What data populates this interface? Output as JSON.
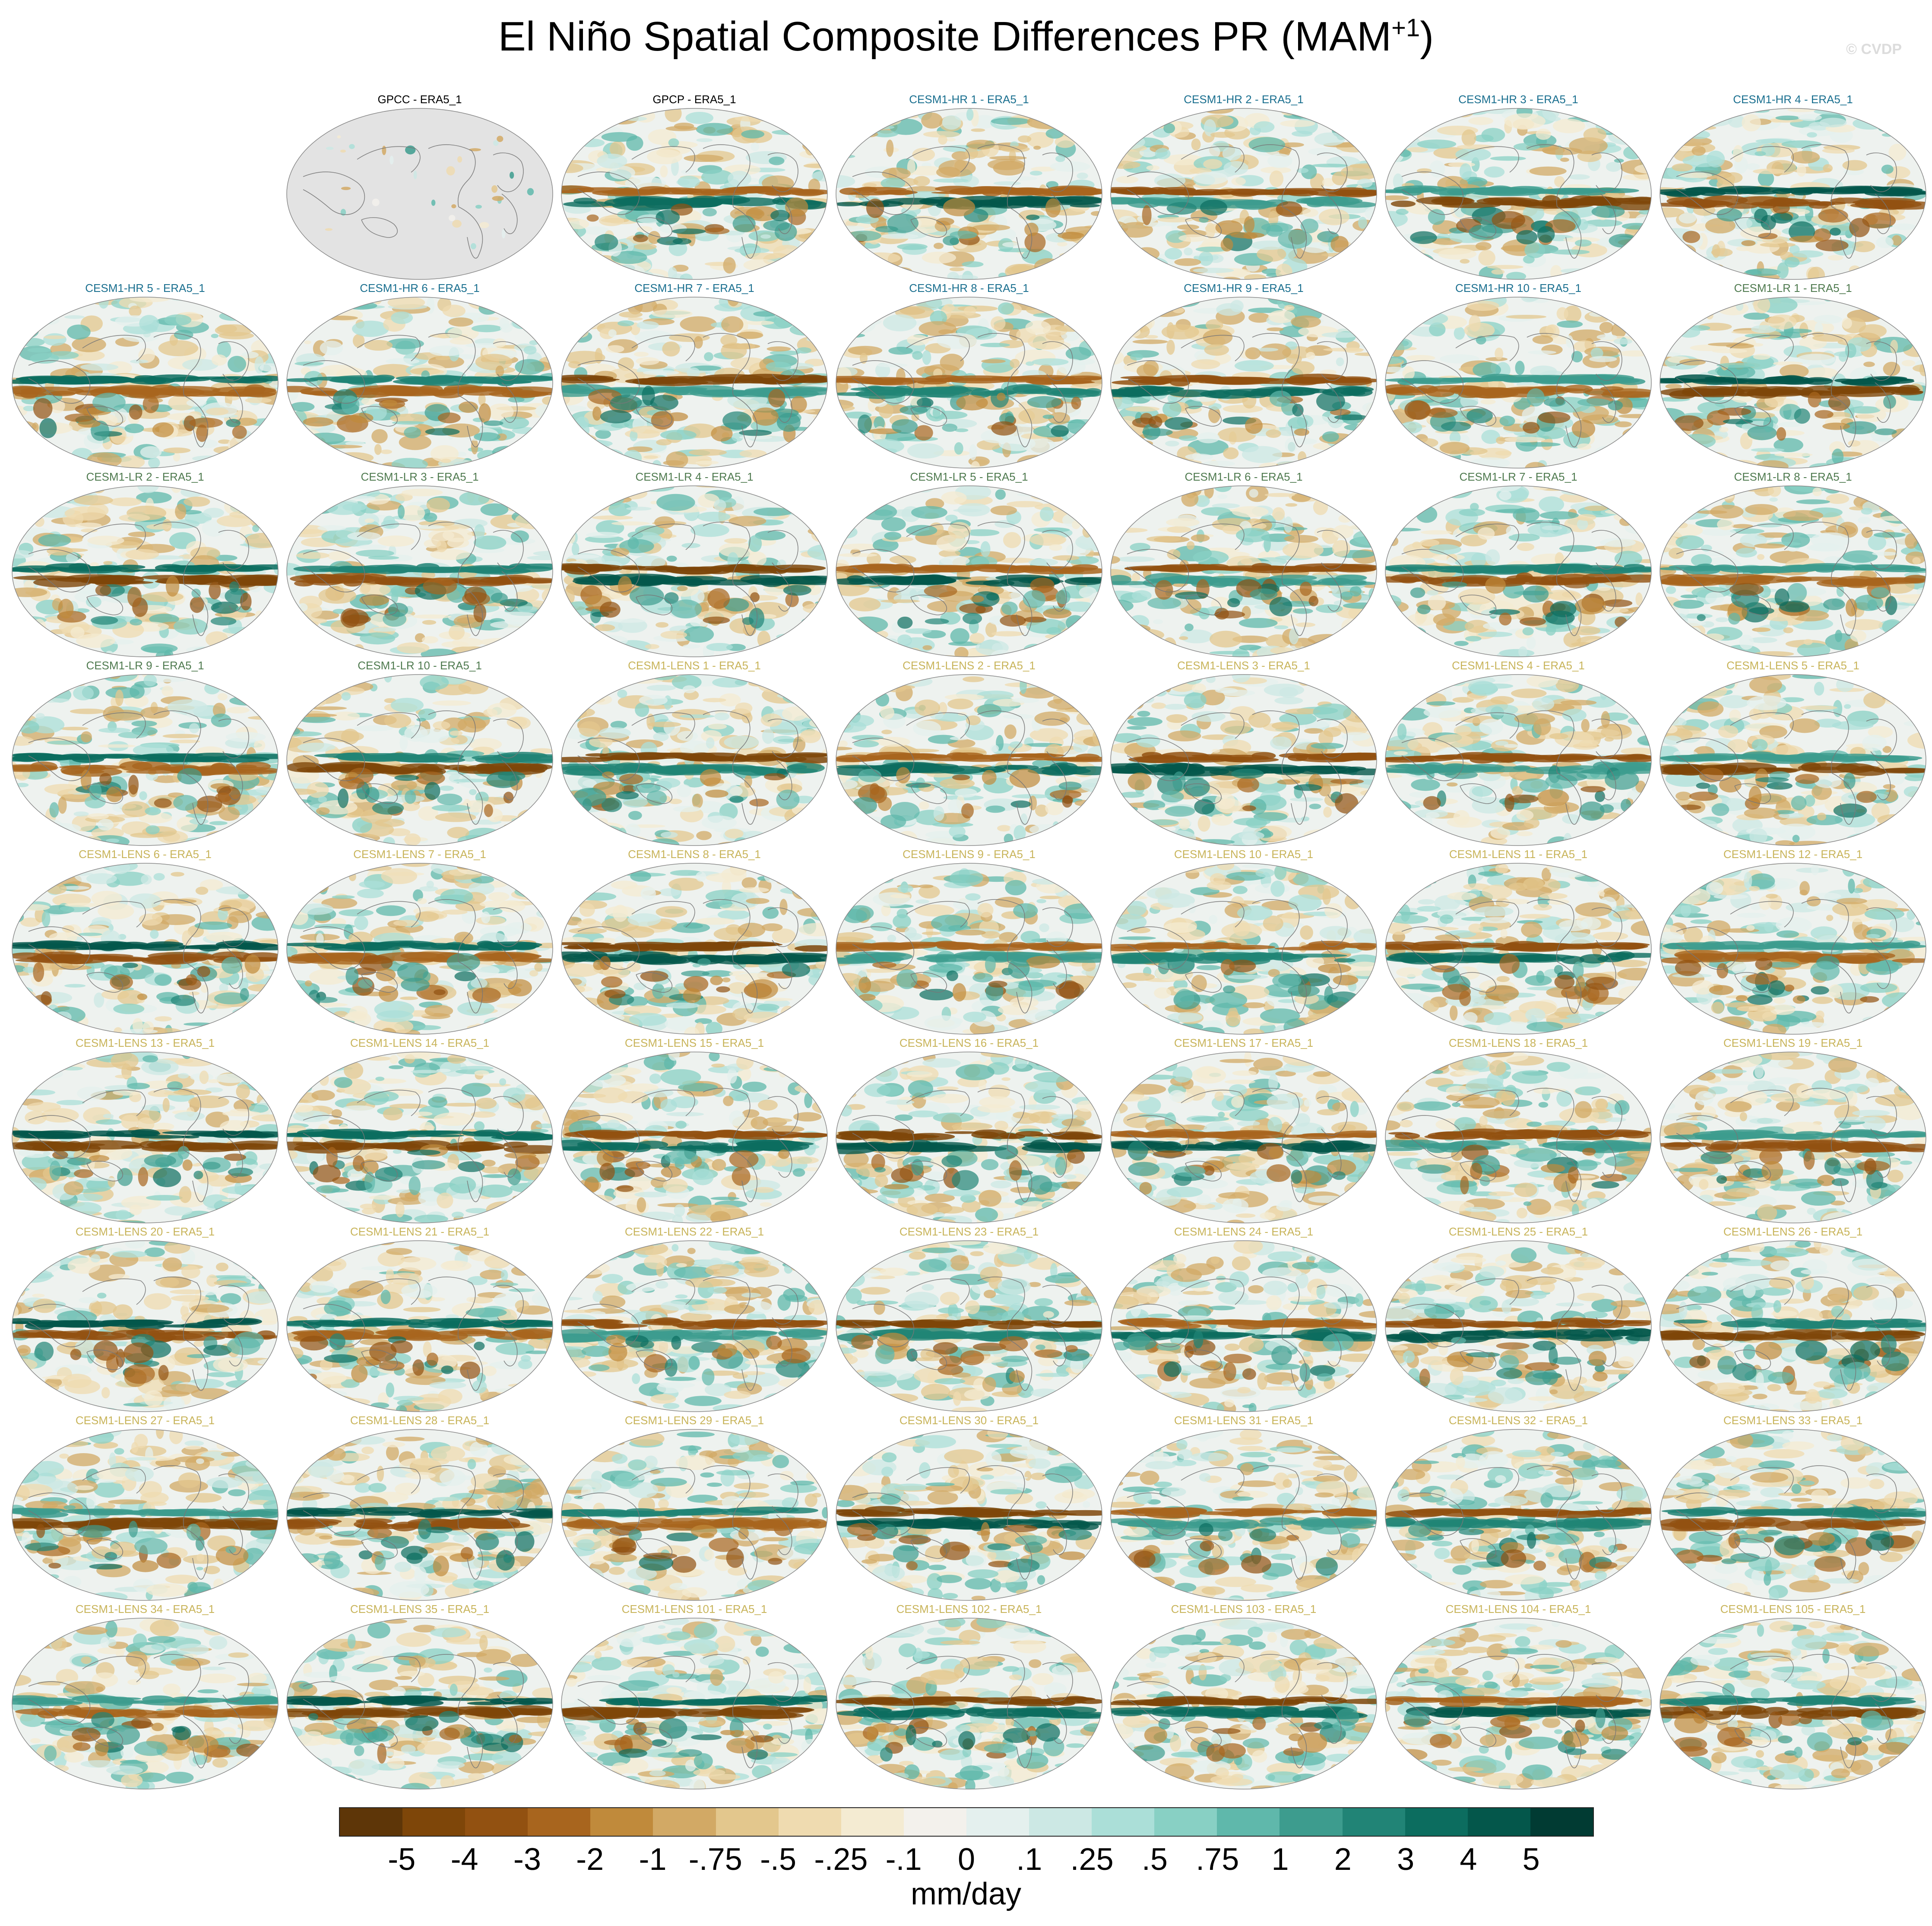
{
  "title": {
    "main": "El Niño Spatial Composite Differences PR (MAM",
    "sup": "+1",
    "close": ")"
  },
  "credit": "© CVDP",
  "panels": [
    {
      "label": "GPCC - ERA5_1",
      "group": "obs",
      "masked": true
    },
    {
      "label": "GPCP - ERA5_1",
      "group": "obs"
    },
    {
      "label": "CESM1-HR 1 - ERA5_1",
      "group": "hr"
    },
    {
      "label": "CESM1-HR 2 - ERA5_1",
      "group": "hr"
    },
    {
      "label": "CESM1-HR 3 - ERA5_1",
      "group": "hr"
    },
    {
      "label": "CESM1-HR 4 - ERA5_1",
      "group": "hr"
    },
    {
      "label": "CESM1-HR 5 - ERA5_1",
      "group": "hr"
    },
    {
      "label": "CESM1-HR 6 - ERA5_1",
      "group": "hr"
    },
    {
      "label": "CESM1-HR 7 - ERA5_1",
      "group": "hr"
    },
    {
      "label": "CESM1-HR 8 - ERA5_1",
      "group": "hr"
    },
    {
      "label": "CESM1-HR 9 - ERA5_1",
      "group": "hr"
    },
    {
      "label": "CESM1-HR 10 - ERA5_1",
      "group": "hr"
    },
    {
      "label": "CESM1-LR 1 - ERA5_1",
      "group": "lr"
    },
    {
      "label": "CESM1-LR 2 - ERA5_1",
      "group": "lr"
    },
    {
      "label": "CESM1-LR 3 - ERA5_1",
      "group": "lr"
    },
    {
      "label": "CESM1-LR 4 - ERA5_1",
      "group": "lr"
    },
    {
      "label": "CESM1-LR 5 - ERA5_1",
      "group": "lr"
    },
    {
      "label": "CESM1-LR 6 - ERA5_1",
      "group": "lr"
    },
    {
      "label": "CESM1-LR 7 - ERA5_1",
      "group": "lr"
    },
    {
      "label": "CESM1-LR 8 - ERA5_1",
      "group": "lr"
    },
    {
      "label": "CESM1-LR 9 - ERA5_1",
      "group": "lr"
    },
    {
      "label": "CESM1-LR 10 - ERA5_1",
      "group": "lr"
    },
    {
      "label": "CESM1-LENS 1 - ERA5_1",
      "group": "lens"
    },
    {
      "label": "CESM1-LENS 2 - ERA5_1",
      "group": "lens"
    },
    {
      "label": "CESM1-LENS 3 - ERA5_1",
      "group": "lens"
    },
    {
      "label": "CESM1-LENS 4 - ERA5_1",
      "group": "lens"
    },
    {
      "label": "CESM1-LENS 5 - ERA5_1",
      "group": "lens"
    },
    {
      "label": "CESM1-LENS 6 - ERA5_1",
      "group": "lens"
    },
    {
      "label": "CESM1-LENS 7 - ERA5_1",
      "group": "lens"
    },
    {
      "label": "CESM1-LENS 8 - ERA5_1",
      "group": "lens"
    },
    {
      "label": "CESM1-LENS 9 - ERA5_1",
      "group": "lens"
    },
    {
      "label": "CESM1-LENS 10 - ERA5_1",
      "group": "lens"
    },
    {
      "label": "CESM1-LENS 11 - ERA5_1",
      "group": "lens"
    },
    {
      "label": "CESM1-LENS 12 - ERA5_1",
      "group": "lens"
    },
    {
      "label": "CESM1-LENS 13 - ERA5_1",
      "group": "lens"
    },
    {
      "label": "CESM1-LENS 14 - ERA5_1",
      "group": "lens"
    },
    {
      "label": "CESM1-LENS 15 - ERA5_1",
      "group": "lens"
    },
    {
      "label": "CESM1-LENS 16 - ERA5_1",
      "group": "lens"
    },
    {
      "label": "CESM1-LENS 17 - ERA5_1",
      "group": "lens"
    },
    {
      "label": "CESM1-LENS 18 - ERA5_1",
      "group": "lens"
    },
    {
      "label": "CESM1-LENS 19 - ERA5_1",
      "group": "lens"
    },
    {
      "label": "CESM1-LENS 20 - ERA5_1",
      "group": "lens"
    },
    {
      "label": "CESM1-LENS 21 - ERA5_1",
      "group": "lens"
    },
    {
      "label": "CESM1-LENS 22 - ERA5_1",
      "group": "lens"
    },
    {
      "label": "CESM1-LENS 23 - ERA5_1",
      "group": "lens"
    },
    {
      "label": "CESM1-LENS 24 - ERA5_1",
      "group": "lens"
    },
    {
      "label": "CESM1-LENS 25 - ERA5_1",
      "group": "lens"
    },
    {
      "label": "CESM1-LENS 26 - ERA5_1",
      "group": "lens"
    },
    {
      "label": "CESM1-LENS 27 - ERA5_1",
      "group": "lens"
    },
    {
      "label": "CESM1-LENS 28 - ERA5_1",
      "group": "lens"
    },
    {
      "label": "CESM1-LENS 29 - ERA5_1",
      "group": "lens"
    },
    {
      "label": "CESM1-LENS 30 - ERA5_1",
      "group": "lens"
    },
    {
      "label": "CESM1-LENS 31 - ERA5_1",
      "group": "lens"
    },
    {
      "label": "CESM1-LENS 32 - ERA5_1",
      "group": "lens"
    },
    {
      "label": "CESM1-LENS 33 - ERA5_1",
      "group": "lens"
    },
    {
      "label": "CESM1-LENS 34 - ERA5_1",
      "group": "lens"
    },
    {
      "label": "CESM1-LENS 35 - ERA5_1",
      "group": "lens"
    },
    {
      "label": "CESM1-LENS 101 - ERA5_1",
      "group": "lens"
    },
    {
      "label": "CESM1-LENS 102 - ERA5_1",
      "group": "lens"
    },
    {
      "label": "CESM1-LENS 103 - ERA5_1",
      "group": "lens"
    },
    {
      "label": "CESM1-LENS 104 - ERA5_1",
      "group": "lens"
    },
    {
      "label": "CESM1-LENS 105 - ERA5_1",
      "group": "lens"
    }
  ],
  "group_colors": {
    "obs": "#000000",
    "hr": "#1a6f8f",
    "lr": "#4f7a4f",
    "lens": "#c8b45a"
  },
  "colorbar": {
    "colors": [
      "#5e3608",
      "#7e4609",
      "#925111",
      "#a8651e",
      "#c08a3b",
      "#d2a965",
      "#e3c78d",
      "#efdbb0",
      "#f4ebd2",
      "#f3f1ec",
      "#e4f0ee",
      "#cce8e4",
      "#abdfd8",
      "#88d0c4",
      "#5fb8ab",
      "#3d9c8e",
      "#218476",
      "#0c6d5f",
      "#04574b",
      "#013b33"
    ],
    "ticks": [
      "-5",
      "-4",
      "-3",
      "-2",
      "-1",
      "-.75",
      "-.5",
      "-.25",
      "-.1",
      "0",
      ".1",
      ".25",
      ".5",
      ".75",
      "1",
      "2",
      "3",
      "4",
      "5"
    ],
    "units": "mm/day"
  }
}
